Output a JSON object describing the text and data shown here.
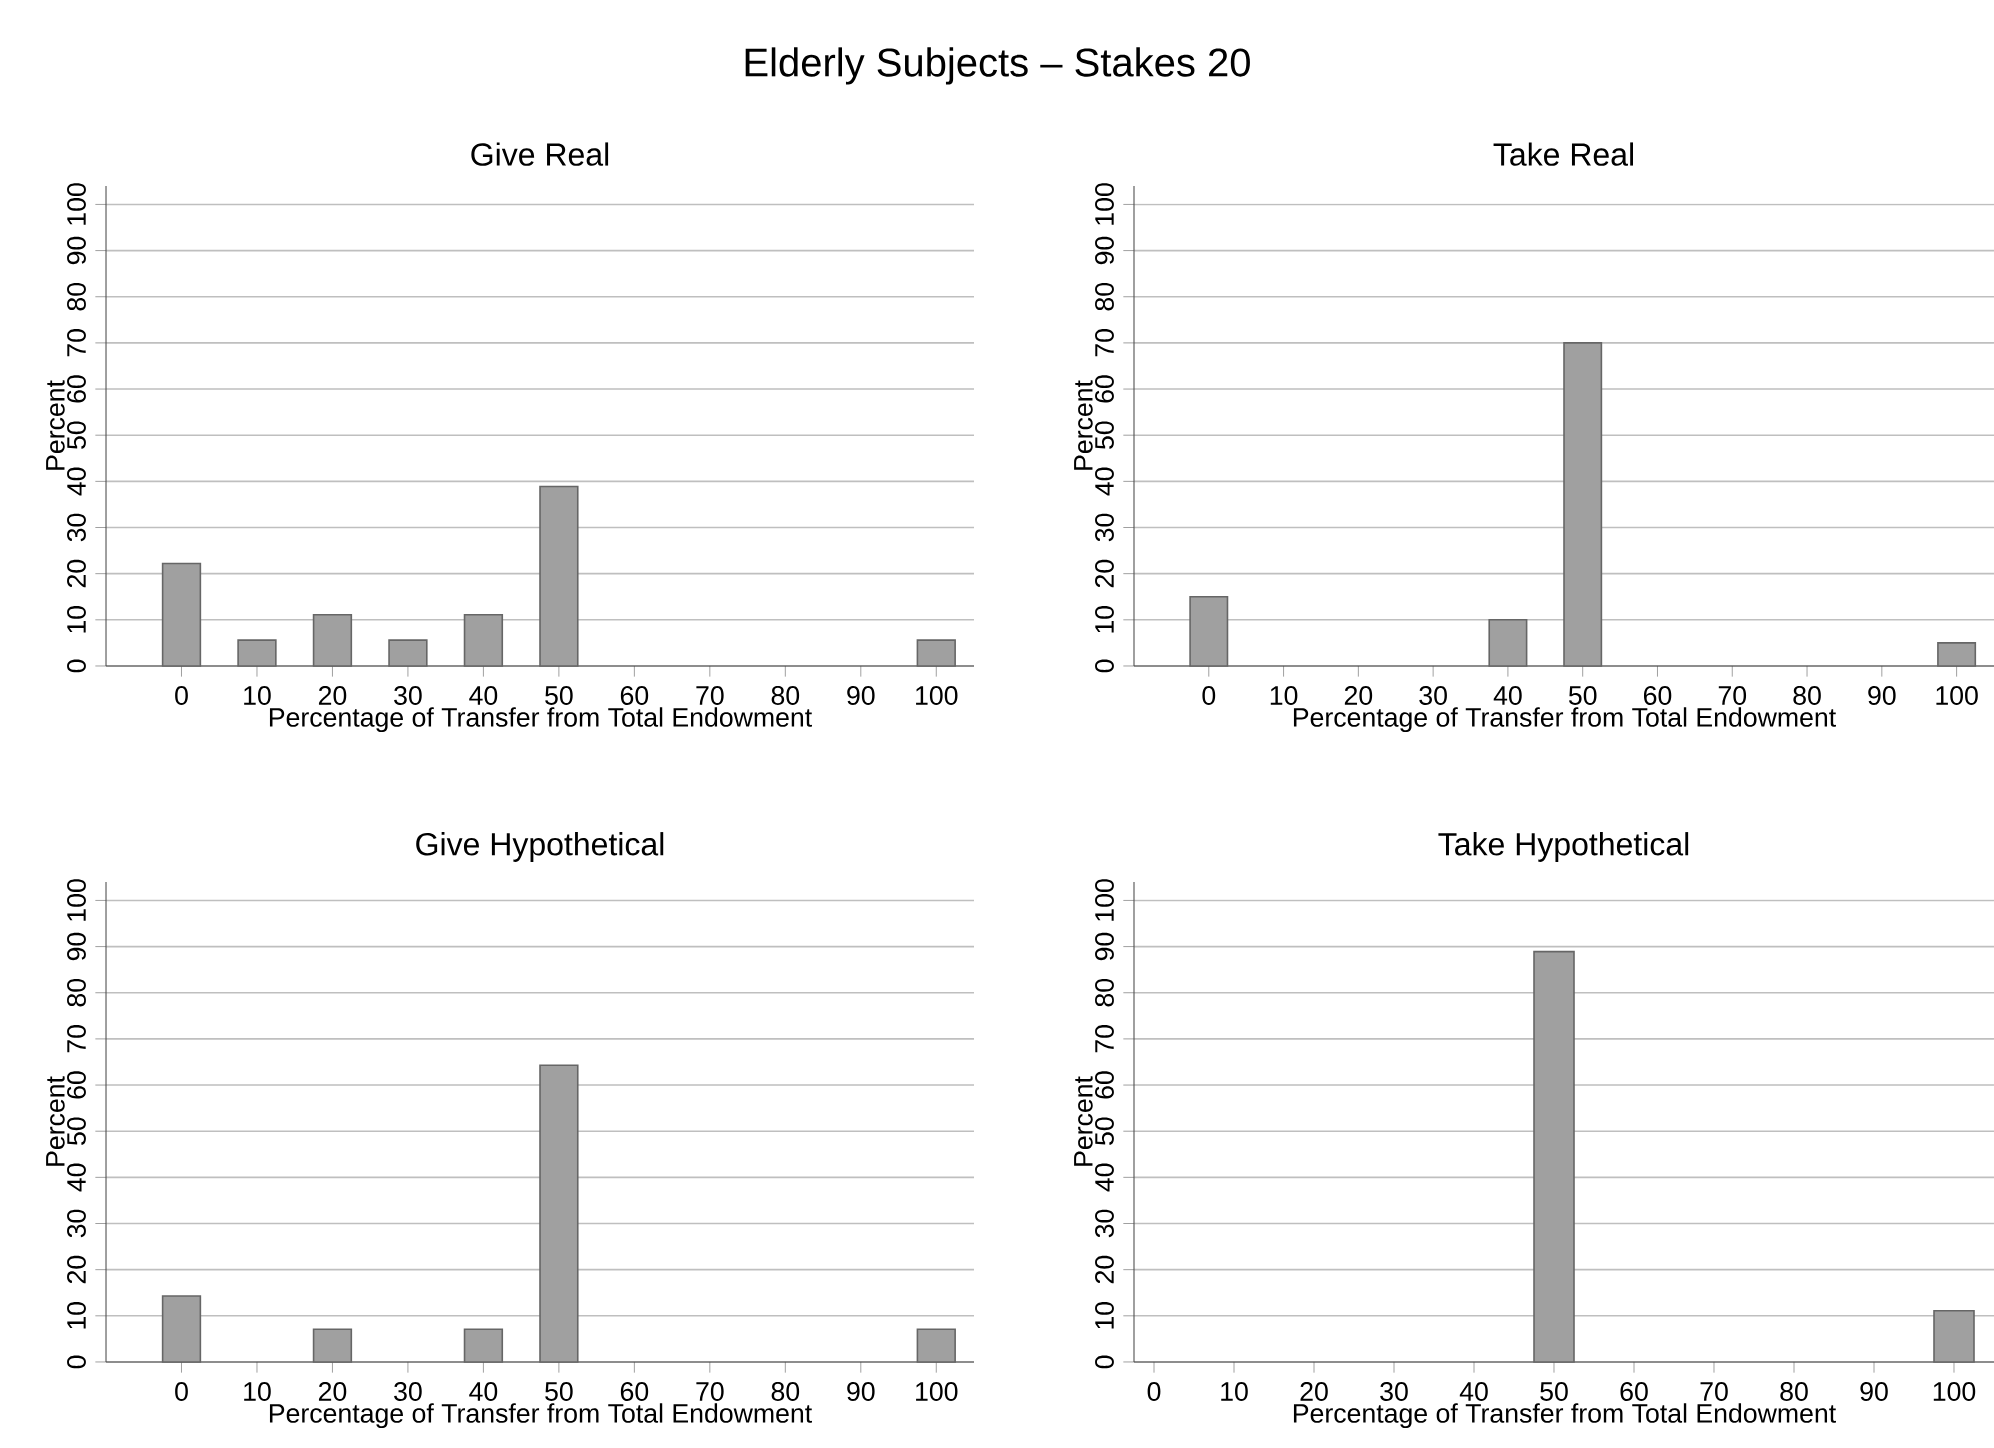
{
  "chart_data": [
    {
      "type": "other",
      "title": "Elderly Subjects – Stakes 20"
    },
    {
      "type": "bar",
      "title": "Give Real",
      "xlabel": "Percentage of Transfer from Total Endowment",
      "ylabel": "Percent",
      "color": "#a0a0a0",
      "x": [
        0,
        10,
        20,
        30,
        40,
        50,
        100
      ],
      "values": [
        22.2,
        5.6,
        11.1,
        5.6,
        11.1,
        38.9,
        5.6
      ],
      "xlim": [
        -10,
        105
      ],
      "ylim": [
        0,
        104
      ],
      "xticks": [
        0,
        10,
        20,
        30,
        40,
        50,
        60,
        70,
        80,
        90,
        100
      ],
      "yticks": [
        0,
        10,
        20,
        30,
        40,
        50,
        60,
        70,
        80,
        90,
        100
      ],
      "grid": "y"
    },
    {
      "type": "bar",
      "title": "Take Real",
      "xlabel": "Percentage of Transfer from Total Endowment",
      "ylabel": "Percent",
      "color": "#a0a0a0",
      "x": [
        0,
        40,
        50,
        100
      ],
      "values": [
        15,
        10,
        70,
        5
      ],
      "xlim": [
        -10,
        105
      ],
      "ylim": [
        0,
        104
      ],
      "xticks": [
        0,
        10,
        20,
        30,
        40,
        50,
        60,
        70,
        80,
        90,
        100
      ],
      "yticks": [
        0,
        10,
        20,
        30,
        40,
        50,
        60,
        70,
        80,
        90,
        100
      ],
      "grid": "y"
    },
    {
      "type": "bar",
      "title": "Give Hypothetical",
      "xlabel": "Percentage of Transfer from Total Endowment",
      "ylabel": "Percent",
      "color": "#a0a0a0",
      "x": [
        0,
        20,
        40,
        50,
        100
      ],
      "values": [
        14.3,
        7.1,
        7.1,
        64.3,
        7.1
      ],
      "xlim": [
        -10,
        105
      ],
      "ylim": [
        0,
        104
      ],
      "xticks": [
        0,
        10,
        20,
        30,
        40,
        50,
        60,
        70,
        80,
        90,
        100
      ],
      "yticks": [
        0,
        10,
        20,
        30,
        40,
        50,
        60,
        70,
        80,
        90,
        100
      ],
      "grid": "y"
    },
    {
      "type": "bar",
      "title": "Take Hypothetical",
      "xlabel": "Percentage of Transfer from Total Endowment",
      "ylabel": "Percent",
      "color": "#a0a0a0",
      "x": [
        50,
        100
      ],
      "values": [
        88.9,
        11.1
      ],
      "xlim": [
        -2.5,
        105
      ],
      "ylim": [
        0,
        104
      ],
      "xticks": [
        0,
        10,
        20,
        30,
        40,
        50,
        60,
        70,
        80,
        90,
        100
      ],
      "yticks": [
        0,
        10,
        20,
        30,
        40,
        50,
        60,
        70,
        80,
        90,
        100
      ],
      "grid": "y"
    }
  ]
}
